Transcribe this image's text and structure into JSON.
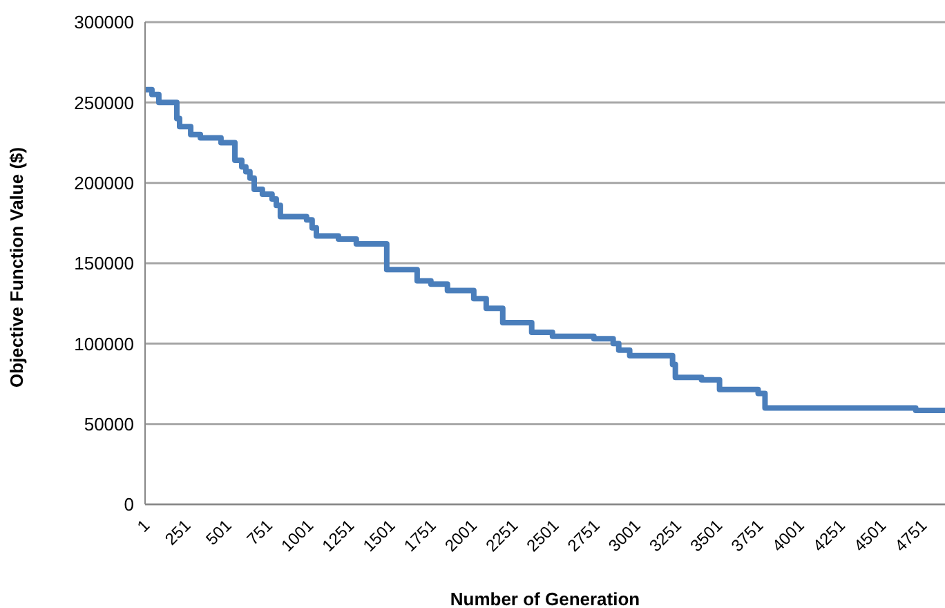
{
  "chart_data": {
    "type": "step",
    "xlabel": "Number of Generation",
    "ylabel": "Objective Function Value ($)",
    "x": [
      1,
      43,
      85,
      195,
      212,
      280,
      339,
      465,
      550,
      592,
      617,
      642,
      668,
      718,
      777,
      803,
      828,
      988,
      1022,
      1048,
      1183,
      1292,
      1478,
      1664,
      1748,
      1849,
      2010,
      2086,
      2187,
      2364,
      2491,
      2744,
      2862,
      2896,
      2963,
      3225,
      3242,
      3402,
      3512,
      3748,
      3790,
      4711,
      4890
    ],
    "series": [
      {
        "color": "#4a7ebb",
        "values": [
          258000,
          255000,
          250000,
          240000,
          235000,
          230000,
          228000,
          225000,
          214000,
          210000,
          207000,
          203000,
          196000,
          193000,
          190000,
          186000,
          179000,
          177000,
          172000,
          167000,
          165000,
          162000,
          146000,
          139000,
          137000,
          133000,
          128000,
          122000,
          113000,
          107000,
          104500,
          103000,
          100000,
          96000,
          92500,
          87000,
          79000,
          77500,
          71500,
          69000,
          60000,
          58500,
          58500
        ]
      }
    ],
    "xlim": [
      1,
      4890
    ],
    "xticks": [
      1,
      251,
      501,
      751,
      1001,
      1251,
      1501,
      1751,
      2001,
      2251,
      2501,
      2751,
      3001,
      3251,
      3501,
      3751,
      4001,
      4251,
      4501,
      4751
    ],
    "ylim": [
      0,
      300000
    ],
    "yticks": [
      0,
      50000,
      100000,
      150000,
      200000,
      250000,
      300000
    ],
    "grid": "y",
    "legend": false,
    "marker": "none",
    "line_style": "solid"
  }
}
